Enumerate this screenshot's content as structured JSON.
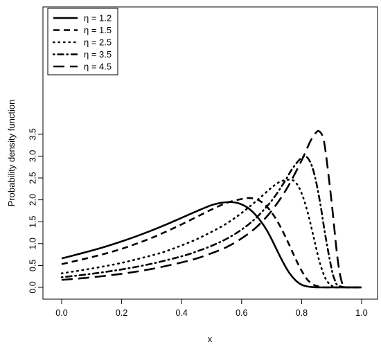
{
  "chart_data": {
    "type": "line",
    "title": "",
    "xlabel": "x",
    "ylabel": "Probability density function",
    "xlim": [
      0,
      1
    ],
    "ylim": [
      0,
      3.5
    ],
    "xticks": [
      "0.0",
      "0.2",
      "0.4",
      "0.6",
      "0.8",
      "1.0"
    ],
    "yticks": [
      "0.0",
      "0.5",
      "1.0",
      "1.5",
      "2.0",
      "2.5",
      "3.0",
      "3.5"
    ],
    "grid": false,
    "legend_position": "top-left",
    "series": [
      {
        "name": "η = 1.2",
        "line_style": "solid",
        "x": [
          0,
          0.05,
          0.1,
          0.15,
          0.2,
          0.25,
          0.3,
          0.35,
          0.4,
          0.45,
          0.5,
          0.53,
          0.56,
          0.59,
          0.62,
          0.65,
          0.68,
          0.7,
          0.72,
          0.74,
          0.76,
          0.78,
          0.8,
          0.82,
          0.84,
          0.86,
          0.88,
          0.9,
          1.0
        ],
        "y": [
          0.66,
          0.75,
          0.84,
          0.94,
          1.05,
          1.17,
          1.3,
          1.44,
          1.59,
          1.74,
          1.88,
          1.93,
          1.95,
          1.92,
          1.82,
          1.63,
          1.35,
          1.1,
          0.82,
          0.55,
          0.32,
          0.16,
          0.06,
          0.02,
          0.005,
          0,
          0,
          0,
          0
        ]
      },
      {
        "name": "η = 1.5",
        "line_style": "dashed",
        "x": [
          0,
          0.05,
          0.1,
          0.15,
          0.2,
          0.25,
          0.3,
          0.35,
          0.4,
          0.45,
          0.5,
          0.55,
          0.6,
          0.63,
          0.66,
          0.69,
          0.72,
          0.75,
          0.78,
          0.8,
          0.82,
          0.84,
          0.86,
          0.88,
          0.9,
          1.0
        ],
        "y": [
          0.53,
          0.61,
          0.69,
          0.78,
          0.88,
          1.0,
          1.13,
          1.28,
          1.44,
          1.61,
          1.78,
          1.93,
          2.02,
          2.04,
          1.98,
          1.8,
          1.5,
          1.1,
          0.65,
          0.38,
          0.17,
          0.06,
          0.015,
          0,
          0,
          0
        ]
      },
      {
        "name": "η = 2.5",
        "line_style": "dotted",
        "x": [
          0,
          0.1,
          0.2,
          0.3,
          0.35,
          0.4,
          0.45,
          0.5,
          0.55,
          0.6,
          0.65,
          0.7,
          0.73,
          0.76,
          0.78,
          0.8,
          0.82,
          0.84,
          0.86,
          0.88,
          0.9,
          0.92,
          1.0
        ],
        "y": [
          0.32,
          0.43,
          0.56,
          0.73,
          0.83,
          0.96,
          1.1,
          1.27,
          1.46,
          1.7,
          1.98,
          2.28,
          2.42,
          2.46,
          2.4,
          2.15,
          1.72,
          1.15,
          0.58,
          0.2,
          0.04,
          0,
          0
        ]
      },
      {
        "name": "η = 3.5",
        "line_style": "dotdash",
        "x": [
          0,
          0.1,
          0.2,
          0.3,
          0.4,
          0.45,
          0.5,
          0.55,
          0.6,
          0.65,
          0.7,
          0.74,
          0.77,
          0.8,
          0.82,
          0.84,
          0.86,
          0.88,
          0.9,
          0.91,
          0.92,
          0.95,
          1.0
        ],
        "y": [
          0.23,
          0.31,
          0.41,
          0.54,
          0.71,
          0.82,
          0.95,
          1.11,
          1.32,
          1.6,
          1.98,
          2.38,
          2.72,
          2.96,
          2.96,
          2.65,
          2.0,
          1.15,
          0.42,
          0.18,
          0.05,
          0,
          0
        ]
      },
      {
        "name": "η = 4.5",
        "line_style": "longdash",
        "x": [
          0,
          0.1,
          0.2,
          0.3,
          0.4,
          0.45,
          0.5,
          0.55,
          0.6,
          0.65,
          0.7,
          0.75,
          0.8,
          0.83,
          0.85,
          0.86,
          0.87,
          0.88,
          0.9,
          0.92,
          0.935,
          0.95,
          1.0
        ],
        "y": [
          0.17,
          0.23,
          0.31,
          0.42,
          0.57,
          0.66,
          0.78,
          0.92,
          1.12,
          1.38,
          1.75,
          2.25,
          2.9,
          3.35,
          3.55,
          3.56,
          3.45,
          3.1,
          1.95,
          0.65,
          0.1,
          0,
          0
        ]
      }
    ]
  }
}
